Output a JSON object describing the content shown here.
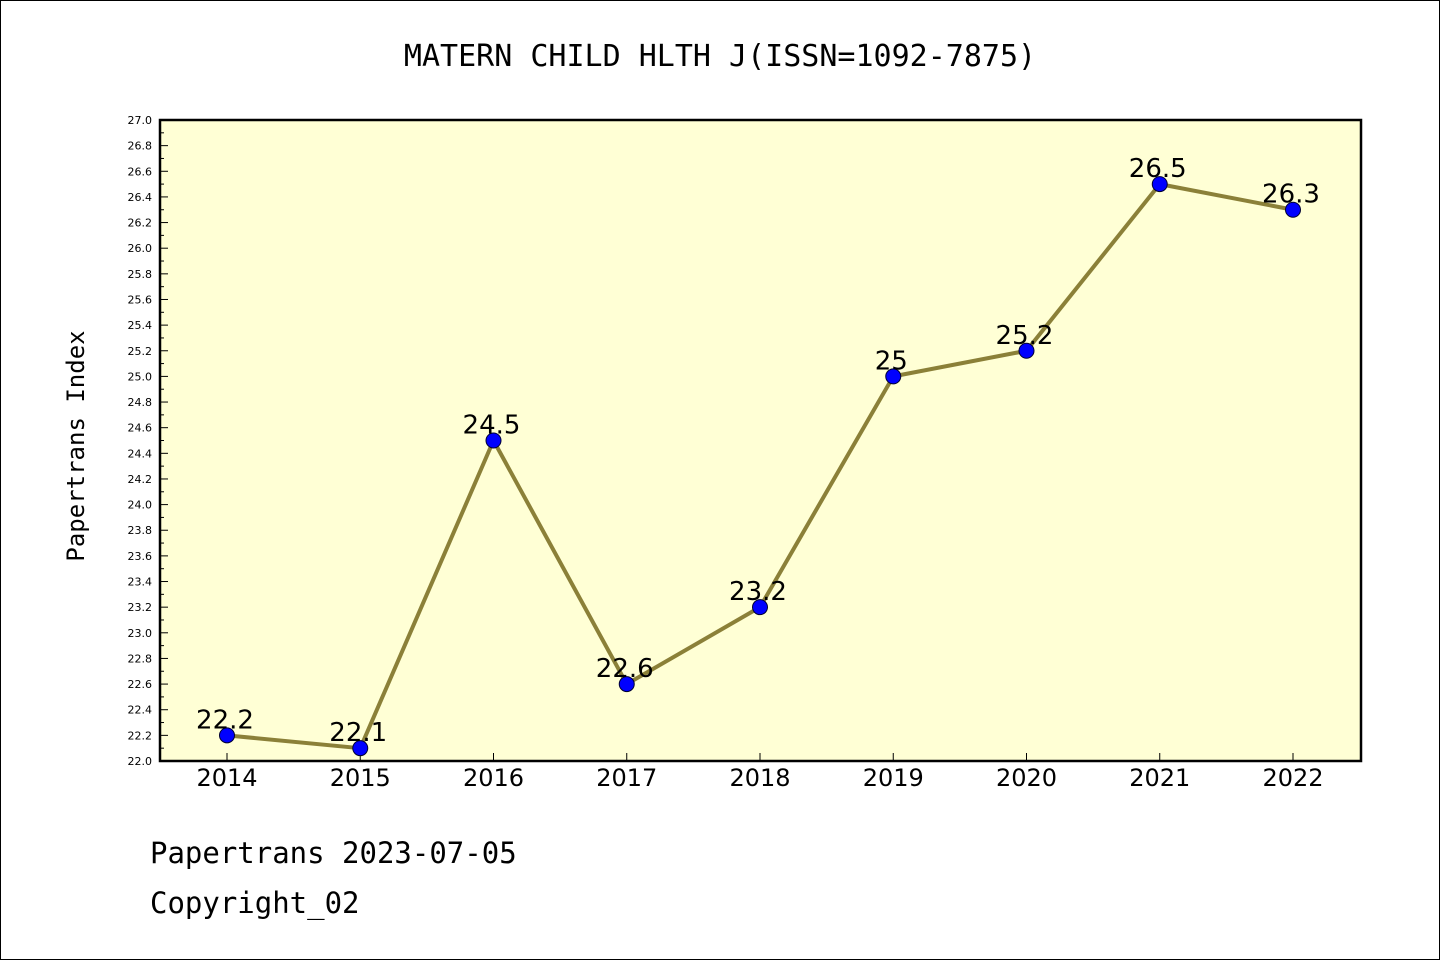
{
  "chart_data": {
    "type": "line",
    "title": "MATERN CHILD HLTH J(ISSN=1092-7875)",
    "ylabel": "Papertrans Index",
    "xlabel": "",
    "ylim": [
      22.0,
      27.0
    ],
    "ytick_step": 0.2,
    "categories": [
      "2014",
      "2015",
      "2016",
      "2017",
      "2018",
      "2019",
      "2020",
      "2021",
      "2022"
    ],
    "values": [
      22.2,
      22.1,
      24.5,
      22.6,
      23.2,
      25.0,
      25.2,
      26.5,
      26.3
    ],
    "data_labels": [
      "22.2",
      "22.1",
      "24.5",
      "22.6",
      "23.2",
      "25",
      "25.2",
      "26.5",
      "26.3"
    ],
    "plot_background": "#ffffd5",
    "line_color": "#8b8038",
    "marker_color": "#0000ff",
    "grid": false,
    "legend": "none"
  },
  "footer": {
    "line1": "Papertrans 2023-07-05",
    "line2": "Copyright_02"
  }
}
